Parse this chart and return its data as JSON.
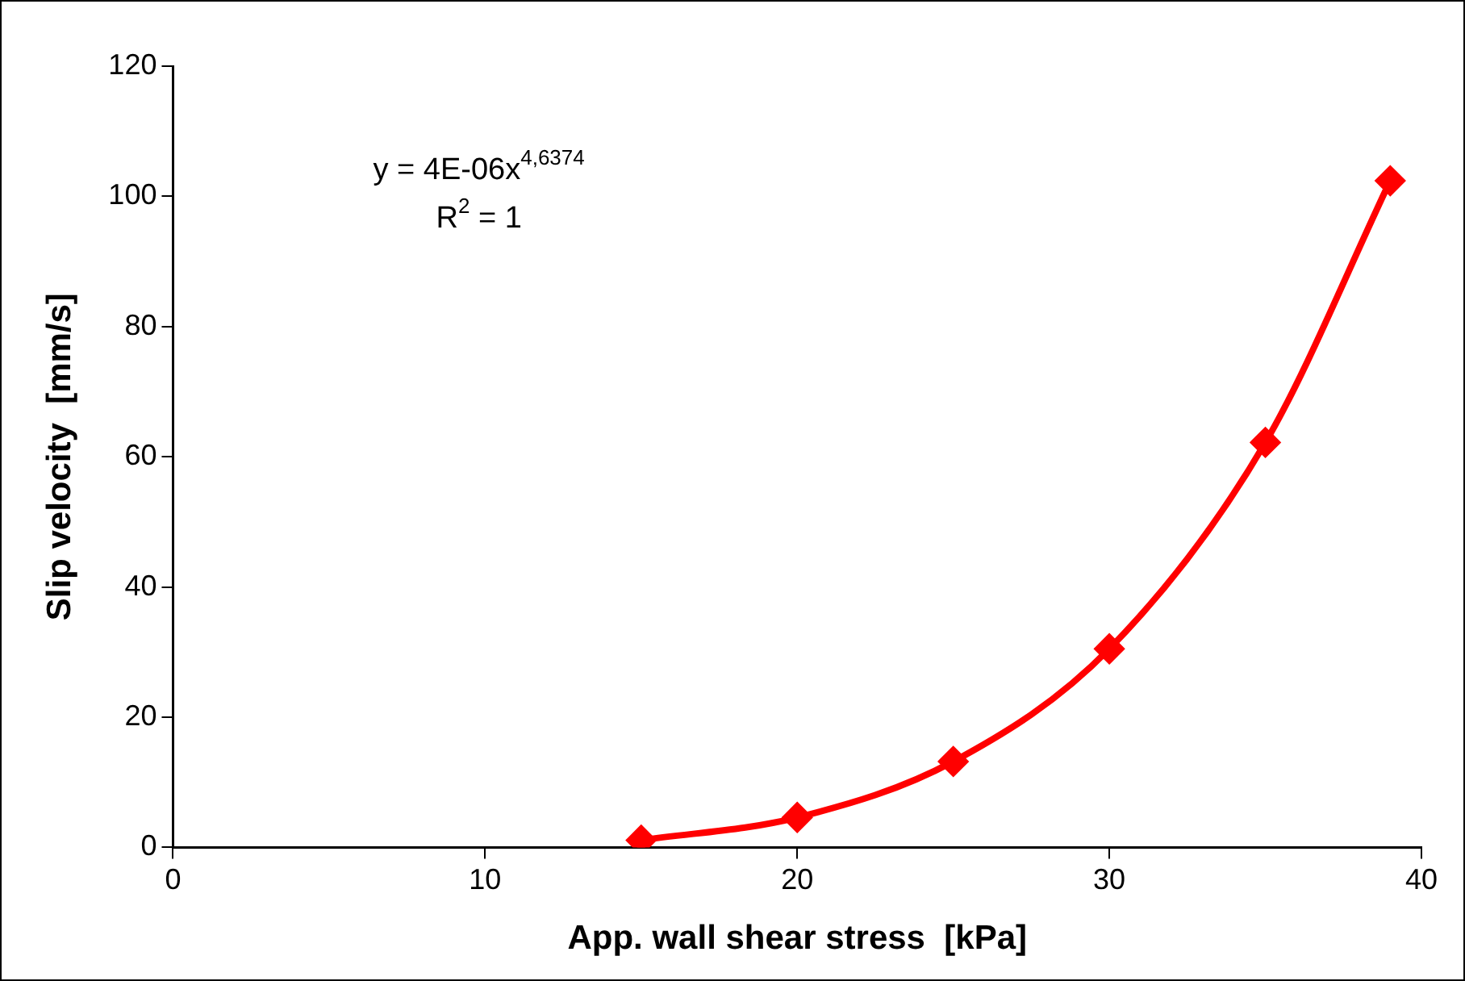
{
  "chart_data": {
    "type": "line",
    "xlabel": "App. wall shear stress  [kPa]",
    "ylabel": "Slip velocity  [mm/s]",
    "annotations": [
      "y = 4E-06x$^{4,6374}$",
      "R$^{2}$ = 1"
    ],
    "x": [
      15,
      20,
      25,
      30,
      35,
      39
    ],
    "series": [
      {
        "color": "#ff0000",
        "values": [
          1.1,
          4.6,
          13.2,
          30.5,
          62.2,
          102.4
        ]
      }
    ],
    "xlim": [
      0,
      40
    ],
    "xticks": [
      0,
      10,
      20,
      30,
      40
    ],
    "ylim": [
      0,
      120
    ],
    "yticks": [
      0,
      20,
      40,
      60,
      80,
      100,
      120
    ],
    "grid": false,
    "legend": false,
    "marker": "diamond",
    "line_style": "solid"
  }
}
